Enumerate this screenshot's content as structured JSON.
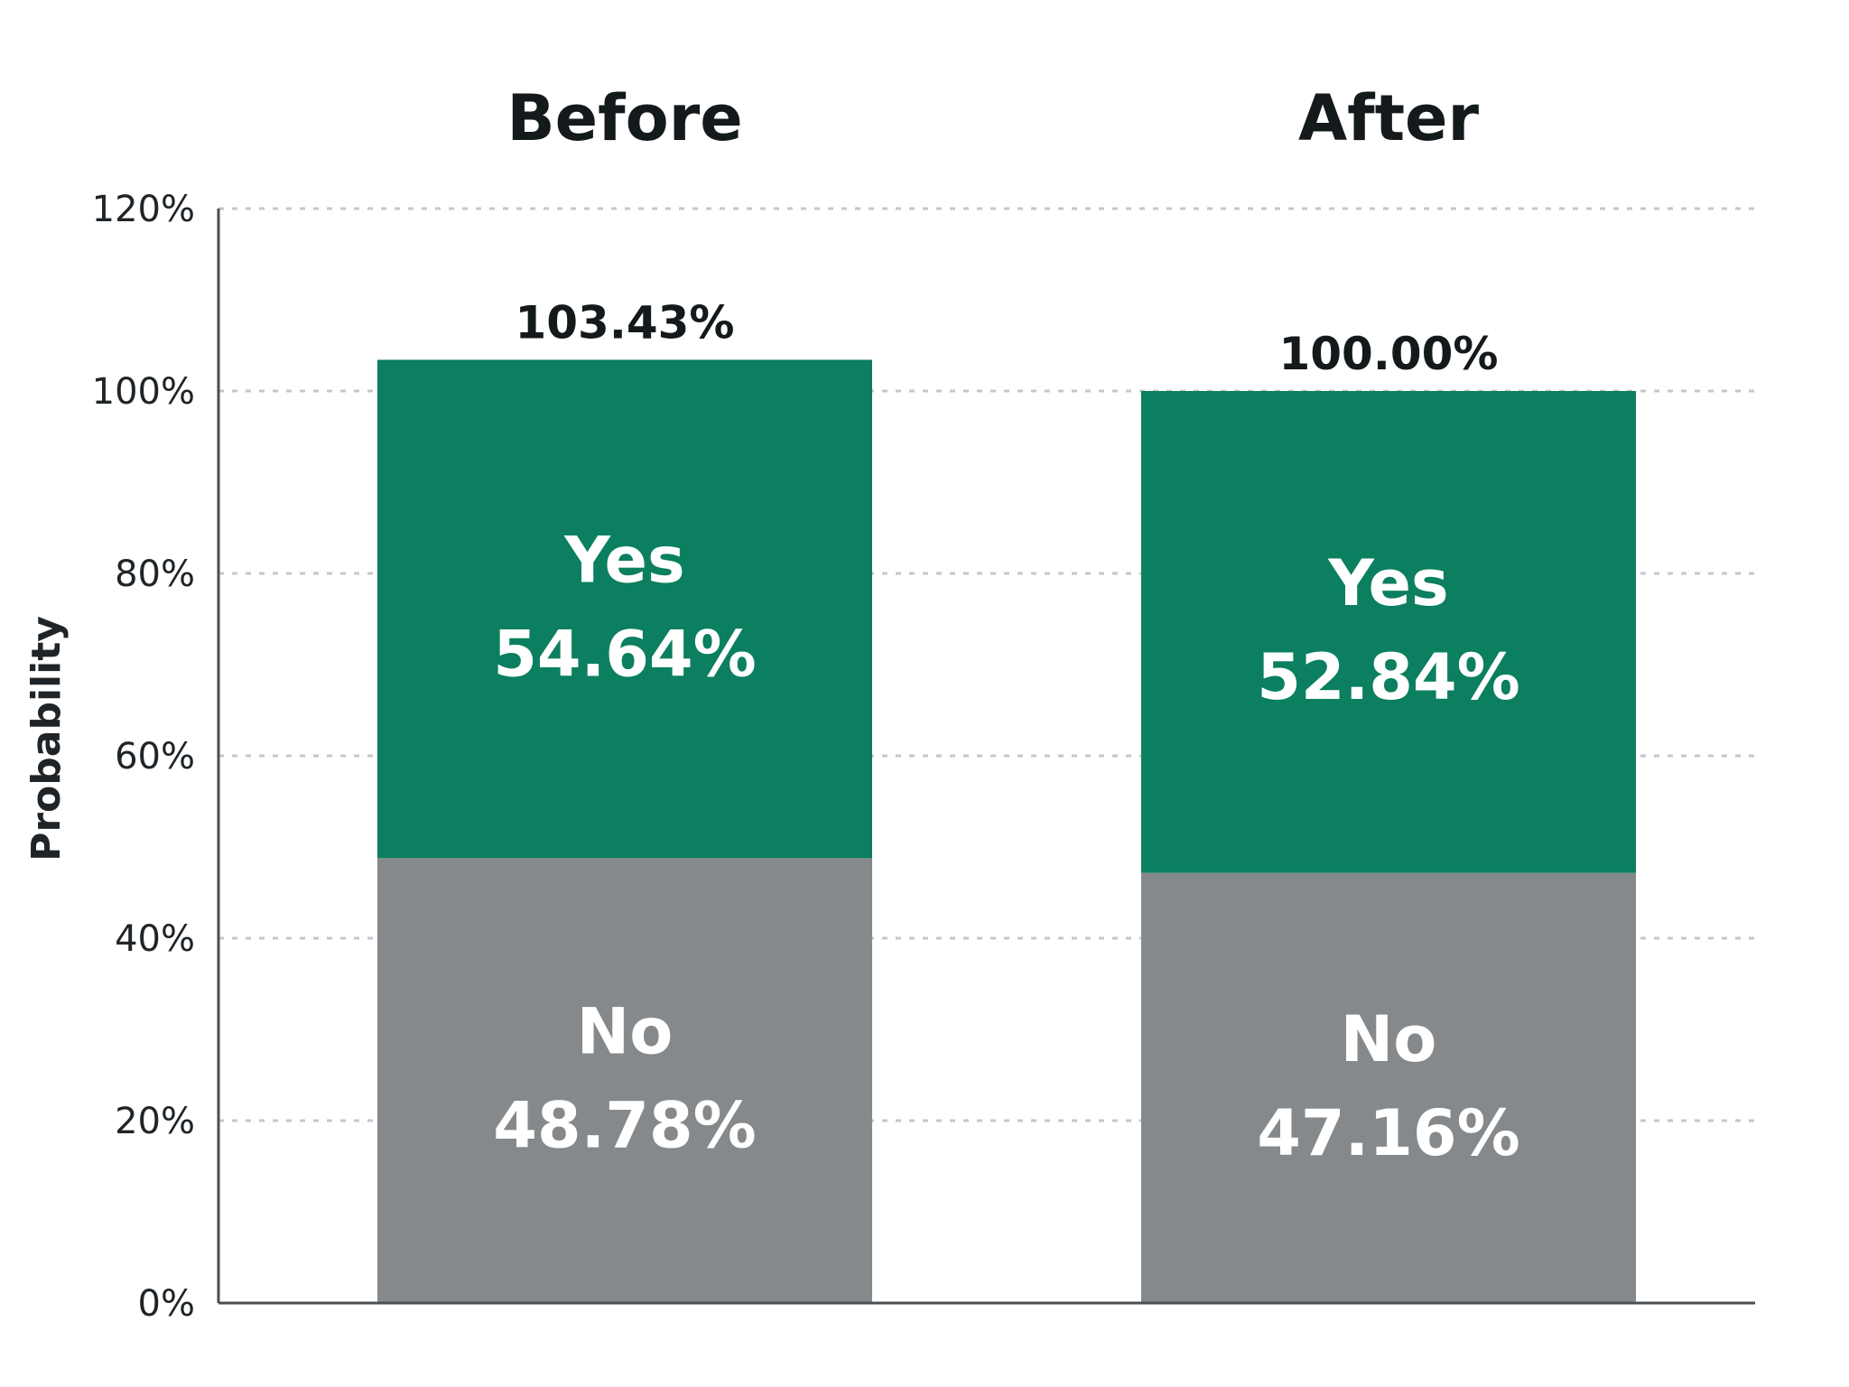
{
  "chart_data": {
    "type": "bar",
    "stacked": true,
    "categories": [
      "Before",
      "After"
    ],
    "series": [
      {
        "name": "No",
        "values": [
          48.78,
          47.16
        ],
        "labels": [
          "48.78%",
          "47.16%"
        ],
        "color": "#85898c"
      },
      {
        "name": "Yes",
        "values": [
          54.64,
          52.84
        ],
        "labels": [
          "54.64%",
          "52.84%"
        ],
        "color": "#0b7f5f"
      }
    ],
    "totals": [
      "103.43%",
      "100.00%"
    ],
    "ylabel": "Probability",
    "xlabel": "",
    "ylim": [
      0,
      120
    ],
    "yticks": [
      "0%",
      "20%",
      "40%",
      "60%",
      "80%",
      "100%",
      "120%"
    ],
    "grid": true,
    "colors": {
      "axis": "#4a4f53",
      "grid": "#c4c7ca",
      "text": "#14191c"
    }
  }
}
